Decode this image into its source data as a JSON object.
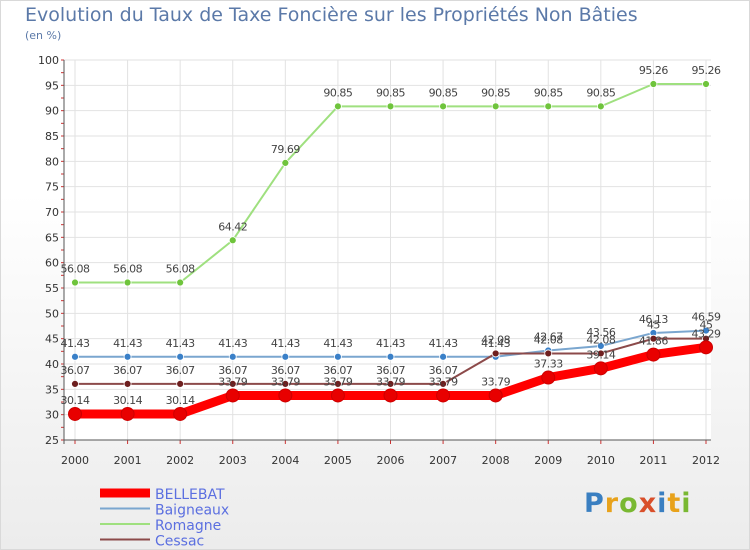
{
  "title": "Evolution du Taux de Taxe Foncière sur les Propriétés Non Bâties",
  "subtitle": "(en %)",
  "logo": {
    "text": "Proxiti",
    "colors": [
      "#3a7fc1",
      "#e8a21b",
      "#79b832",
      "#d94f2a",
      "#3a7fc1",
      "#e8a21b",
      "#79b832"
    ]
  },
  "chart_data": {
    "type": "line",
    "title": "Evolution du Taux de Taxe Foncière sur les Propriétés Non Bâties",
    "ylabel": "(en %)",
    "x": [
      2000,
      2001,
      2002,
      2003,
      2004,
      2005,
      2006,
      2007,
      2008,
      2009,
      2010,
      2011,
      2012
    ],
    "ylim": [
      25,
      100
    ],
    "yticks": [
      25,
      30,
      35,
      40,
      45,
      50,
      55,
      60,
      65,
      70,
      75,
      80,
      85,
      90,
      95,
      100
    ],
    "grid": true,
    "legend_position": "bottom-left",
    "series": [
      {
        "name": "BELLEBAT",
        "color": "#ff0000",
        "marker": "#e80000",
        "text_color": "#5b6fe0",
        "values": [
          30.14,
          30.14,
          30.14,
          33.79,
          33.79,
          33.79,
          33.79,
          33.79,
          33.79,
          37.33,
          39.14,
          41.86,
          43.29
        ],
        "labels": [
          "30.14",
          "30.14",
          "30.14",
          "33.79",
          "33.79",
          "33.79",
          "33.79",
          "33.79",
          "33.79",
          "37.33",
          "39.14",
          "41.86",
          "43.29"
        ]
      },
      {
        "name": "Baigneaux",
        "color": "#7aa6cf",
        "marker": "#3a80c8",
        "text_color": "#5b6fe0",
        "values": [
          41.43,
          41.43,
          41.43,
          41.43,
          41.43,
          41.43,
          41.43,
          41.43,
          41.43,
          42.67,
          43.56,
          46.13,
          46.59
        ],
        "labels": [
          "41.43",
          "41.43",
          "41.43",
          "41.43",
          "41.43",
          "41.43",
          "41.43",
          "41.43",
          "41.43",
          "42.67",
          "43.56",
          "46.13",
          "46.59"
        ]
      },
      {
        "name": "Romagne",
        "color": "#9fe07f",
        "marker": "#6fc43c",
        "text_color": "#5b6fe0",
        "values": [
          56.08,
          56.08,
          56.08,
          64.42,
          79.69,
          90.85,
          90.85,
          90.85,
          90.85,
          90.85,
          90.85,
          95.26,
          95.26
        ],
        "labels": [
          "56.08",
          "56.08",
          "56.08",
          "64.42",
          "79.69",
          "90.85",
          "90.85",
          "90.85",
          "90.85",
          "90.85",
          "90.85",
          "95.26",
          "95.26"
        ]
      },
      {
        "name": "Cessac",
        "color": "#8c4a4a",
        "marker": "#6e1f1f",
        "text_color": "#5b6fe0",
        "values": [
          36.07,
          36.07,
          36.07,
          36.07,
          36.07,
          36.07,
          36.07,
          36.07,
          42.08,
          42.08,
          42.08,
          45,
          45
        ],
        "labels": [
          "36.07",
          "36.07",
          "36.07",
          "36.07",
          "36.07",
          "36.07",
          "36.07",
          "36.07",
          "42.08",
          "42.08",
          "42.08",
          "45",
          "45"
        ]
      }
    ]
  }
}
